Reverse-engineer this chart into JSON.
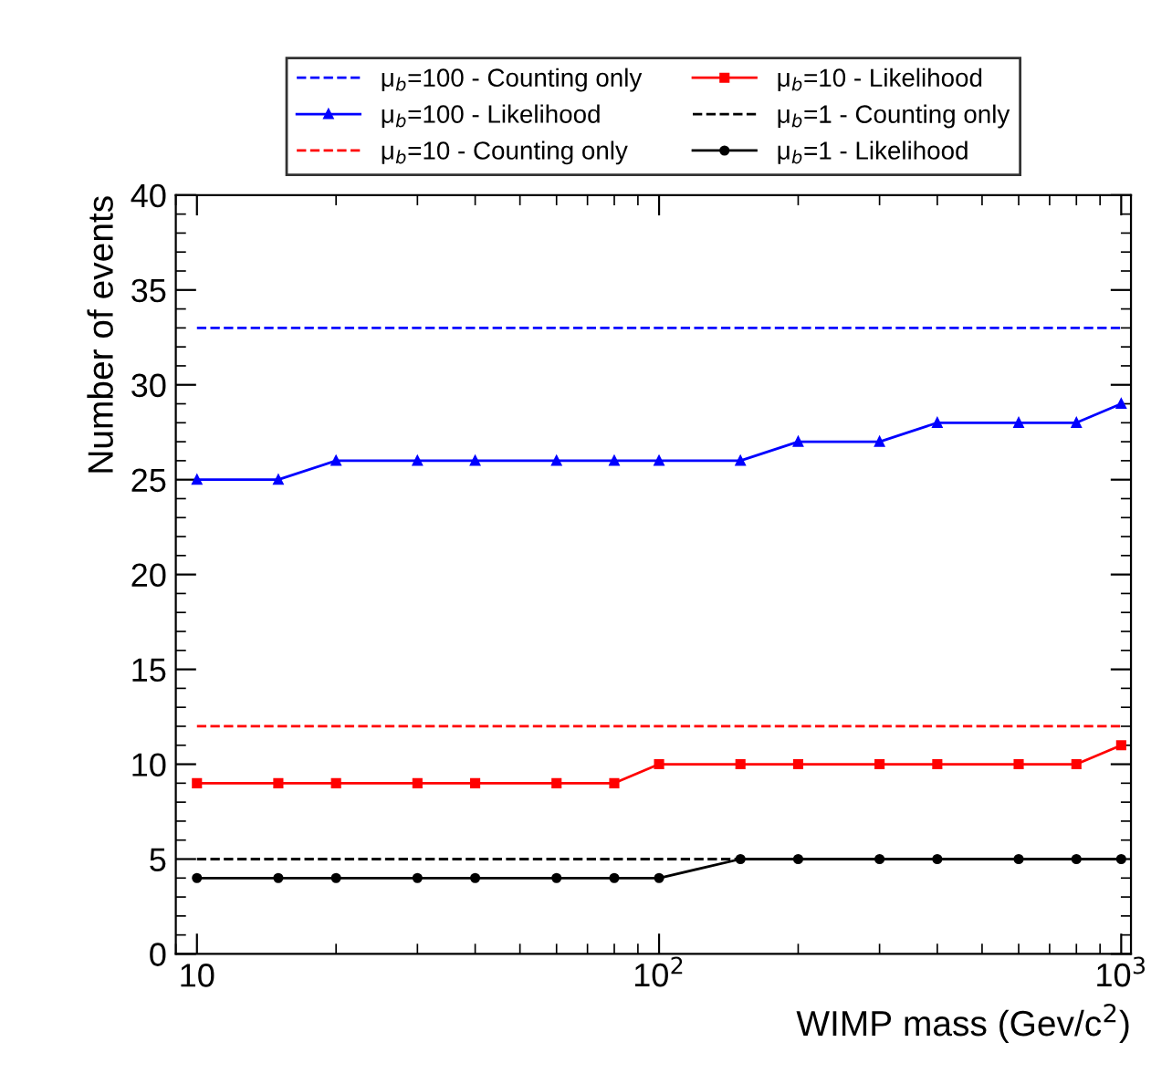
{
  "chart_data": {
    "type": "line",
    "xlabel": "WIMP mass (Gev/c$^{2}$)",
    "ylabel": "Number of events",
    "log": "x",
    "xlim": [
      9,
      1050
    ],
    "xticks": [
      {
        "value": 10,
        "label": "10"
      },
      {
        "value": 100,
        "label": "10$^{2}$"
      },
      {
        "value": 1000,
        "label": "10$^{3}$"
      }
    ],
    "ylim": [
      0,
      40
    ],
    "yticks": [
      0,
      5,
      10,
      15,
      20,
      25,
      30,
      35,
      40
    ],
    "grid": false,
    "legend": "top",
    "series": [
      {
        "name": "μ$_{b}$=100 - Counting only",
        "color": "#0000ff",
        "line_style": "dashed",
        "x": [
          10,
          1000
        ],
        "values": [
          33,
          33
        ]
      },
      {
        "name": "μ$_{b}$=100 - Likelihood",
        "color": "#0000ff",
        "line_style": "solid",
        "marker": "triangle",
        "x": [
          10,
          15,
          20,
          30,
          40,
          60,
          80,
          100,
          150,
          200,
          300,
          400,
          600,
          800,
          1000
        ],
        "values": [
          25,
          25,
          26,
          26,
          26,
          26,
          26,
          26,
          26,
          27,
          27,
          28,
          28,
          28,
          29
        ]
      },
      {
        "name": "μ$_{b}$=10 - Counting only",
        "color": "#ff0000",
        "line_style": "dashed",
        "x": [
          10,
          1000
        ],
        "values": [
          12,
          12
        ]
      },
      {
        "name": "μ$_{b}$=10 - Likelihood",
        "color": "#ff0000",
        "line_style": "solid",
        "marker": "square",
        "x": [
          10,
          15,
          20,
          30,
          40,
          60,
          80,
          100,
          150,
          200,
          300,
          400,
          600,
          800,
          1000
        ],
        "values": [
          9,
          9,
          9,
          9,
          9,
          9,
          9,
          10,
          10,
          10,
          10,
          10,
          10,
          10,
          11
        ]
      },
      {
        "name": "μ$_{b}$=1 - Counting only",
        "color": "#000000",
        "line_style": "dashed",
        "x": [
          10,
          1000
        ],
        "values": [
          5,
          5
        ]
      },
      {
        "name": "μ$_{b}$=1 - Likelihood",
        "color": "#000000",
        "line_style": "solid",
        "marker": "circle",
        "x": [
          10,
          15,
          20,
          30,
          40,
          60,
          80,
          100,
          150,
          200,
          300,
          400,
          600,
          800,
          1000
        ],
        "values": [
          4,
          4,
          4,
          4,
          4,
          4,
          4,
          4,
          5,
          5,
          5,
          5,
          5,
          5,
          5
        ]
      }
    ]
  }
}
